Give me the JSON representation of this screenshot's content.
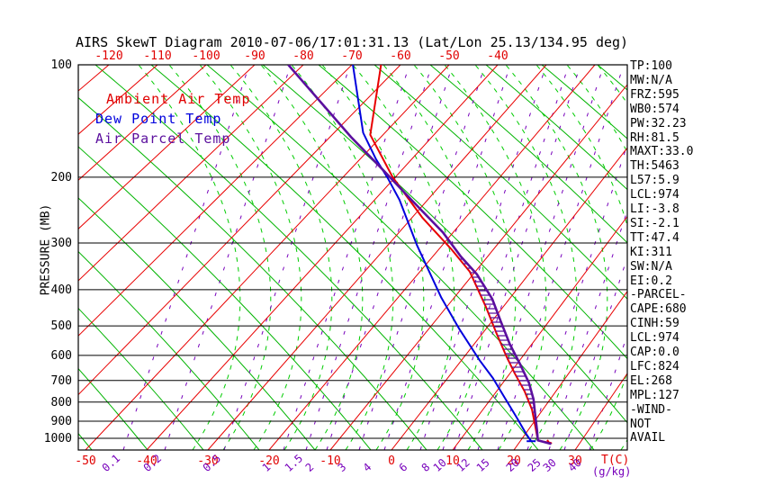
{
  "title": "AIRS SkewT Diagram 2010-07-06/17:01:31.13 (Lat/Lon 25.13/134.95 deg)",
  "legend": {
    "ambient": {
      "label": "Ambient Air Temp",
      "color": "#e00000"
    },
    "dewpoint": {
      "label": "Dew Point Temp",
      "color": "#0000dd"
    },
    "parcel": {
      "label": "Air Parcel Temp",
      "color": "#5b0f9e"
    }
  },
  "axes": {
    "pressure_axis_label": "PRESSURE (MB)",
    "pressure_ticks": [
      100,
      200,
      300,
      400,
      500,
      600,
      700,
      800,
      900,
      1000
    ],
    "top_temp_ticks": [
      -120,
      -110,
      -100,
      -90,
      -80,
      -70,
      -60,
      -50,
      -40
    ],
    "bottom_temp_ticks": [
      -50,
      -40,
      -30,
      -20,
      -10,
      0,
      10,
      20,
      30
    ],
    "temp_unit_label": "T(C)",
    "mixing_unit_label": "(g/kg)",
    "mixing_ratio_labels": [
      {
        "v": "0.1",
        "x": 137
      },
      {
        "v": "0.2",
        "x": 183
      },
      {
        "v": "0.5",
        "x": 249
      },
      {
        "v": "1",
        "x": 315
      },
      {
        "v": "1.5",
        "x": 340
      },
      {
        "v": "2",
        "x": 363
      },
      {
        "v": "3",
        "x": 399
      },
      {
        "v": "4",
        "x": 427
      },
      {
        "v": "6",
        "x": 467
      },
      {
        "v": "8",
        "x": 492
      },
      {
        "v": "10",
        "x": 505
      },
      {
        "v": "12",
        "x": 531
      },
      {
        "v": "15",
        "x": 553
      },
      {
        "v": "20",
        "x": 586
      },
      {
        "v": "25",
        "x": 610
      },
      {
        "v": "30",
        "x": 627
      },
      {
        "v": "40",
        "x": 655
      }
    ]
  },
  "panel": {
    "lines": [
      "TP:100",
      "MW:N/A",
      "FRZ:595",
      "WB0:574",
      "PW:32.23",
      "RH:81.5",
      "MAXT:33.0",
      "TH:5463",
      "L57:5.9",
      "LCL:974",
      "LI:-3.8",
      "SI:-2.1",
      "TT:47.4",
      "KI:311",
      "SW:N/A",
      "EI:0.2",
      "-PARCEL-",
      "CAPE:680",
      "CINH:59",
      "LCL:974",
      "CAP:0.0",
      "LFC:824",
      "EL:268",
      "MPL:127",
      "-WIND-",
      "NOT",
      "AVAIL"
    ]
  },
  "chart_data": {
    "type": "line",
    "subtype": "skew-t-log-p",
    "title": "AIRS SkewT Diagram 2010-07-06/17:01:31.13 (Lat/Lon 25.13/134.95 deg)",
    "xlabel": "T(C)",
    "ylabel": "PRESSURE (MB)",
    "pressure_range_mb": [
      100,
      1050
    ],
    "grid": {
      "isotherm_step_c": 10,
      "isotherm_range_c": [
        -140,
        40
      ],
      "colors": {
        "isotherm": "#e80000",
        "dry_adiabat": "#00b400",
        "moist_adiabat": "#00cc00",
        "mixing_ratio": "#7700bb",
        "pressure_line": "#000000"
      }
    },
    "series": [
      {
        "name": "Ambient Air Temp",
        "color": "#e80000",
        "units": [
          "mb",
          "C"
        ],
        "points": [
          [
            100,
            -64
          ],
          [
            154,
            -52.5
          ],
          [
            200,
            -40.5
          ],
          [
            257,
            -28
          ],
          [
            313,
            -17.5
          ],
          [
            358,
            -11
          ],
          [
            443,
            -3.2
          ],
          [
            523,
            2.4
          ],
          [
            600,
            7
          ],
          [
            670,
            10.8
          ],
          [
            750,
            14.8
          ],
          [
            838,
            18.2
          ],
          [
            935,
            20.9
          ],
          [
            1013,
            22.8
          ],
          [
            1030,
            25.3
          ],
          [
            1025,
            24.8
          ],
          [
            1010,
            24.3
          ]
        ]
      },
      {
        "name": "Dew Point Temp",
        "color": "#0000dd",
        "units": [
          "mb",
          "C"
        ],
        "end_tick": true,
        "points": [
          [
            100,
            -69.8
          ],
          [
            152,
            -54.3
          ],
          [
            179,
            -46.9
          ],
          [
            201,
            -41.3
          ],
          [
            230,
            -35.3
          ],
          [
            303,
            -24.8
          ],
          [
            419,
            -12.4
          ],
          [
            509,
            -4.7
          ],
          [
            618,
            3.1
          ],
          [
            690,
            7.7
          ],
          [
            771,
            11.8
          ],
          [
            875,
            16.4
          ],
          [
            978,
            20.3
          ],
          [
            1018,
            21.8
          ]
        ]
      },
      {
        "name": "Air Parcel Temp",
        "color": "#5b0f9e",
        "units": [
          "mb",
          "C"
        ],
        "points": [
          [
            100,
            -83.1
          ],
          [
            156,
            -55.9
          ],
          [
            190,
            -44
          ],
          [
            231,
            -32.8
          ],
          [
            281,
            -21.9
          ],
          [
            326,
            -14.9
          ],
          [
            364,
            -9.3
          ],
          [
            423,
            -3.1
          ],
          [
            487,
            1.6
          ],
          [
            560,
            6.2
          ],
          [
            634,
            10.6
          ],
          [
            710,
            14.4
          ],
          [
            786,
            17.2
          ],
          [
            863,
            19.3
          ],
          [
            952,
            21.5
          ],
          [
            1013,
            22.8
          ],
          [
            1035,
            25.4
          ]
        ]
      }
    ],
    "cape_hatch": {
      "between": [
        "Air Parcel Temp",
        "Ambient Air Temp"
      ],
      "pressure_range_mb": [
        336,
        900
      ],
      "color": "#5b0f9e"
    }
  }
}
